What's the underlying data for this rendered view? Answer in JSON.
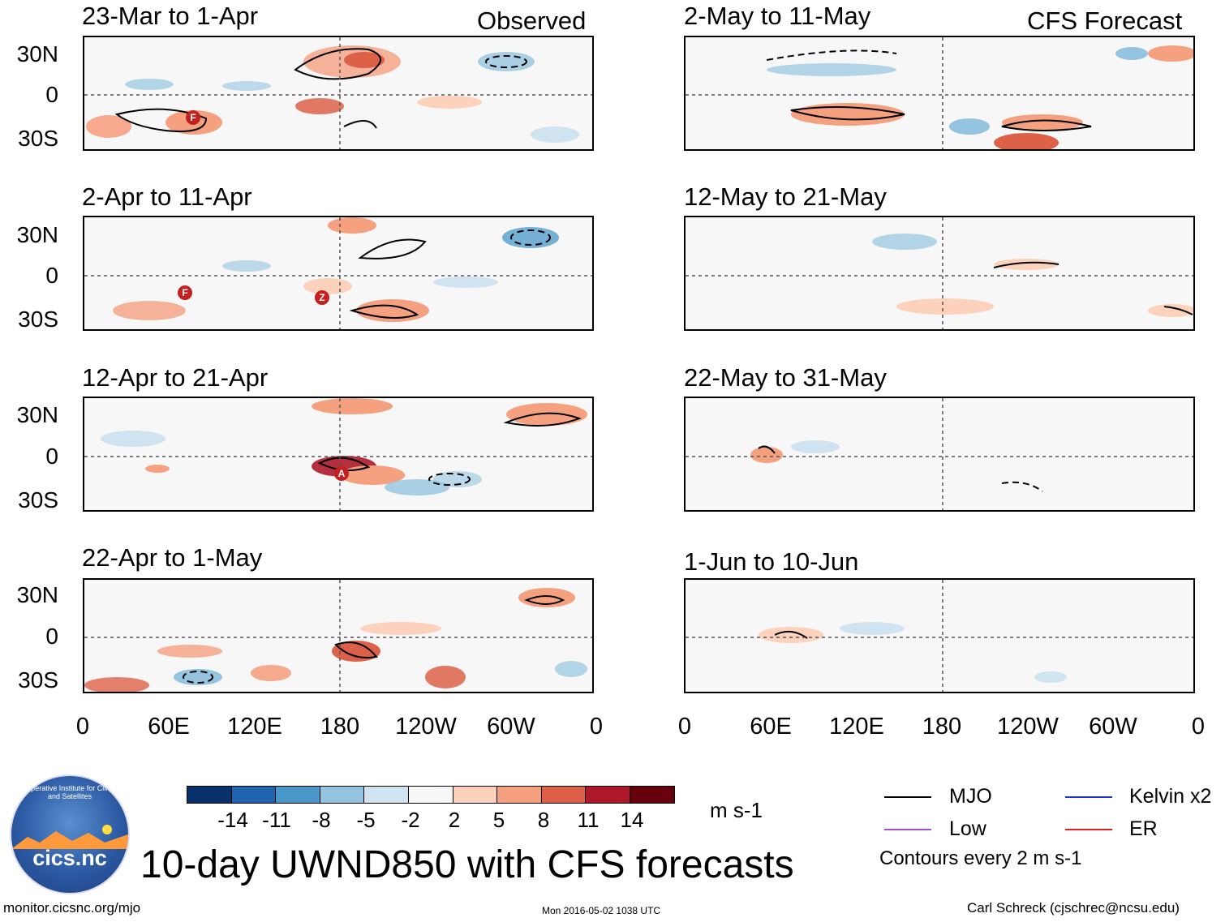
{
  "title": "10-day UWND850 with CFS forecasts",
  "headers": {
    "observed": "Observed",
    "forecast": "CFS Forecast"
  },
  "observed_periods": [
    "23-Mar to 1-Apr",
    "2-Apr to 11-Apr",
    "12-Apr to 21-Apr",
    "22-Apr to 1-May"
  ],
  "forecast_periods": [
    "2-May to 11-May",
    "12-May to 21-May",
    "22-May to 31-May",
    "1-Jun to 10-Jun"
  ],
  "lat_labels": [
    "30N",
    "0",
    "30S"
  ],
  "lon_labels": [
    "0",
    "60E",
    "120E",
    "180",
    "120W",
    "60W",
    "0"
  ],
  "colorbar": {
    "colors": [
      "#08306b",
      "#1f64ad",
      "#4a98c9",
      "#94c4df",
      "#d0e3f0",
      "#f7f7f7",
      "#fcd2bd",
      "#f5a07f",
      "#dd6149",
      "#ad1929",
      "#67000d"
    ],
    "labels": [
      "-14",
      "-11",
      "-8",
      "-5",
      "-2",
      "2",
      "5",
      "8",
      "11",
      "14"
    ],
    "units": "m s-1"
  },
  "legend": {
    "items": [
      {
        "label": "MJO",
        "color": "#000000"
      },
      {
        "label": "Kelvin x2",
        "color": "#2233cc"
      },
      {
        "label": "Low",
        "color": "#a64be0"
      },
      {
        "label": "ER",
        "color": "#e02020"
      }
    ],
    "contours": "Contours every 2 m s-1"
  },
  "storm_markers": [
    {
      "panel": "observed-1",
      "label": "F"
    },
    {
      "panel": "observed-2",
      "label": "F"
    },
    {
      "panel": "observed-2",
      "label": "Z"
    },
    {
      "panel": "observed-3",
      "label": "A"
    }
  ],
  "logo": {
    "text": "cics.nc",
    "ring": "Cooperative Institute for Climate and Satellites"
  },
  "footer": {
    "url": "monitor.cicsnc.org/mjo",
    "timestamp": "Mon 2016-05-02 1038 UTC",
    "credit": "Carl Schreck (cjschrec@ncsu.edu)"
  }
}
